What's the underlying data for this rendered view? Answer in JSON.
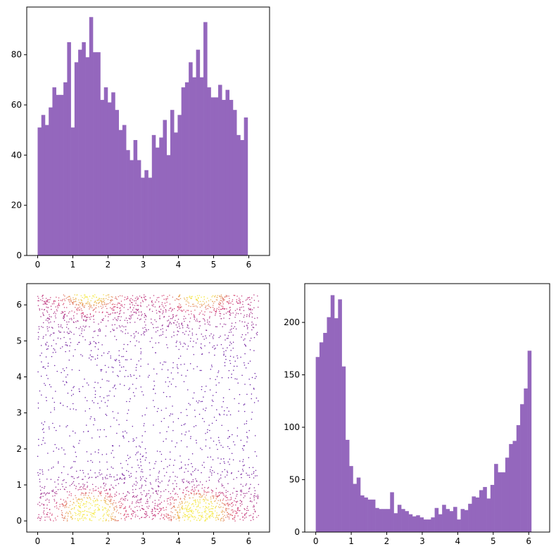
{
  "chart_data": [
    {
      "type": "bar",
      "panel": "top-left",
      "title": "",
      "xlabel": "",
      "ylabel": "",
      "xlim": [
        -0.31,
        6.59
      ],
      "ylim": [
        0,
        99
      ],
      "xticks": [
        0,
        1,
        2,
        3,
        4,
        5,
        6
      ],
      "yticks": [
        0,
        20,
        40,
        60,
        80
      ],
      "bin_start": 0,
      "bin_width": 0.1047,
      "color": "#9467bd",
      "values": [
        51,
        56,
        52,
        59,
        67,
        64,
        64,
        69,
        85,
        51,
        77,
        82,
        85,
        79,
        95,
        81,
        81,
        62,
        67,
        61,
        65,
        58,
        50,
        52,
        42,
        38,
        46,
        38,
        31,
        34,
        31,
        48,
        43,
        47,
        54,
        40,
        58,
        49,
        56,
        67,
        69,
        77,
        71,
        82,
        71,
        93,
        67,
        63,
        63,
        68,
        62,
        66,
        62,
        58,
        48,
        46,
        55
      ]
    },
    {
      "type": "scatter",
      "panel": "bottom-left",
      "title": "",
      "xlabel": "",
      "ylabel": "",
      "xlim": [
        -0.31,
        6.59
      ],
      "ylim": [
        -0.31,
        6.59
      ],
      "xticks": [
        0,
        1,
        2,
        3,
        4,
        5,
        6
      ],
      "yticks": [
        0,
        1,
        2,
        3,
        4,
        5,
        6
      ],
      "colormap": "plasma",
      "color_low": "#5a18a8",
      "color_mid": "#d6457a",
      "color_high": "#f5e94a",
      "dense_regions": [
        {
          "x": 1.5,
          "y": 0.4,
          "level": "high"
        },
        {
          "x": 4.6,
          "y": 0.4,
          "level": "high"
        },
        {
          "x": 1.5,
          "y": 6.2,
          "level": "mid"
        },
        {
          "x": 4.6,
          "y": 6.2,
          "level": "mid"
        }
      ]
    },
    {
      "type": "bar",
      "panel": "bottom-right",
      "title": "",
      "xlabel": "",
      "ylabel": "",
      "xlim": [
        -0.31,
        6.59
      ],
      "ylim": [
        0,
        237
      ],
      "xticks": [
        0,
        1,
        2,
        3,
        4,
        5,
        6
      ],
      "yticks": [
        0,
        50,
        100,
        150,
        200
      ],
      "bin_start": 0,
      "bin_width": 0.1047,
      "color": "#9467bd",
      "values": [
        167,
        181,
        190,
        205,
        226,
        204,
        222,
        158,
        88,
        63,
        46,
        52,
        35,
        33,
        31,
        31,
        23,
        22,
        22,
        22,
        38,
        18,
        26,
        22,
        20,
        17,
        15,
        16,
        14,
        12,
        12,
        14,
        23,
        17,
        26,
        22,
        20,
        24,
        12,
        22,
        21,
        27,
        34,
        33,
        40,
        43,
        32,
        45,
        65,
        57,
        57,
        71,
        84,
        87,
        102,
        122,
        137,
        173
      ]
    }
  ]
}
